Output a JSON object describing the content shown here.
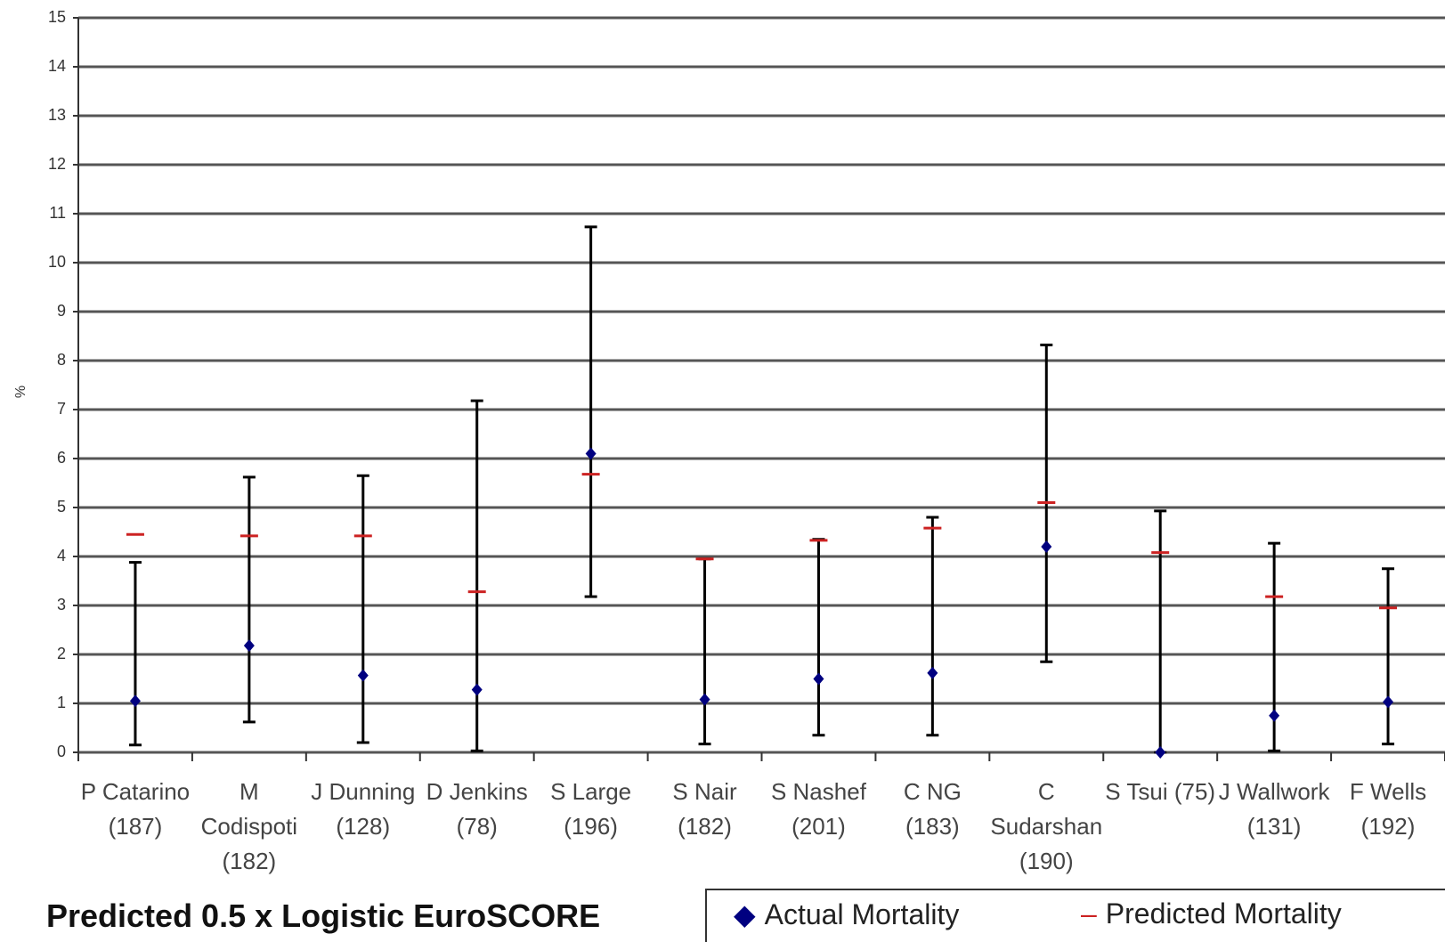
{
  "chart_data": {
    "type": "errorbar",
    "title": "Predicted 0.5 x Logistic EuroSCORE",
    "y_label": "%",
    "categories": [
      "P Catarino (187)",
      "M Codispoti (182)",
      "J Dunning (128)",
      "D Jenkins (78)",
      "S Large (196)",
      "S Nair (182)",
      "S Nashef (201)",
      "C NG (183)",
      "C Sudarshan (190)",
      "S Tsui (75)",
      "J Wallwork (131)",
      "F Wells (192)"
    ],
    "series": [
      {
        "name": "Actual Mortality",
        "color": "#000080",
        "values": [
          1.05,
          2.18,
          1.57,
          1.28,
          6.1,
          1.08,
          1.5,
          1.62,
          4.2,
          0,
          0.75,
          1.03
        ],
        "lower": [
          0.15,
          0.62,
          0.2,
          0.03,
          3.18,
          0.17,
          0.35,
          0.35,
          1.85,
          0,
          0.03,
          0.17
        ],
        "upper": [
          3.88,
          5.62,
          5.65,
          7.18,
          10.73,
          3.95,
          4.35,
          4.8,
          8.32,
          4.93,
          4.27,
          3.75
        ]
      },
      {
        "name": "Predicted Mortality",
        "color": "#cc2222",
        "values": [
          4.45,
          4.42,
          4.42,
          3.28,
          5.68,
          3.95,
          4.33,
          4.58,
          5.1,
          4.08,
          3.18,
          2.95
        ]
      }
    ],
    "ylim": [
      0,
      15
    ],
    "yticks": [
      0,
      1,
      2,
      3,
      4,
      5,
      6,
      7,
      8,
      9,
      10,
      11,
      12,
      13,
      14,
      15
    ],
    "grid": true
  }
}
